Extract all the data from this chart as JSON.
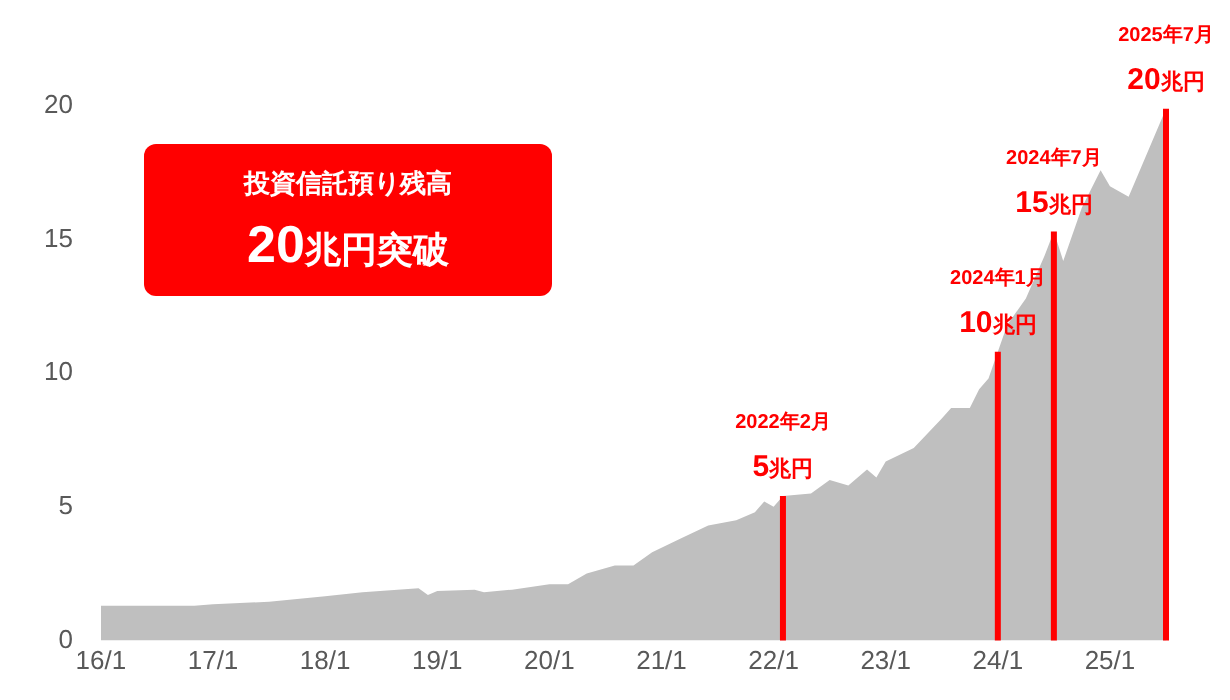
{
  "chart_data": {
    "type": "area",
    "x": [
      "2016-01",
      "2016-11",
      "2017-01",
      "2017-07",
      "2018-01",
      "2018-05",
      "2018-11",
      "2018-12",
      "2019-01",
      "2019-05",
      "2019-06",
      "2019-09",
      "2020-01",
      "2020-03",
      "2020-05",
      "2020-08",
      "2020-10",
      "2020-12",
      "2021-03",
      "2021-06",
      "2021-09",
      "2021-11",
      "2021-12",
      "2022-01",
      "2022-02",
      "2022-05",
      "2022-07",
      "2022-09",
      "2022-11",
      "2022-12",
      "2023-01",
      "2023-04",
      "2023-07",
      "2023-08",
      "2023-10",
      "2023-11",
      "2023-12",
      "2024-01",
      "2024-02",
      "2024-04",
      "2024-06",
      "2024-07",
      "2024-08",
      "2024-10",
      "2024-12",
      "2025-01",
      "2025-03",
      "2025-07"
    ],
    "series": [
      {
        "color": "#bfbfbf",
        "values": [
          1.3,
          1.3,
          1.35,
          1.45,
          1.65,
          1.8,
          1.95,
          1.7,
          1.85,
          1.9,
          1.8,
          1.9,
          2.1,
          2.1,
          2.5,
          2.8,
          2.8,
          3.3,
          3.8,
          4.3,
          4.5,
          4.8,
          5.2,
          5.0,
          5.4,
          5.5,
          6.0,
          5.8,
          6.4,
          6.1,
          6.7,
          7.2,
          8.3,
          8.7,
          8.7,
          9.4,
          9.8,
          10.8,
          11.8,
          12.8,
          14.4,
          15.3,
          14.2,
          16.2,
          17.6,
          17.0,
          16.6,
          19.9
        ]
      }
    ],
    "xlim": [
      "2016-01",
      "2025-07"
    ],
    "xticks": [
      {
        "value": "2016-01",
        "label": "16/1"
      },
      {
        "value": "2017-01",
        "label": "17/1"
      },
      {
        "value": "2018-01",
        "label": "18/1"
      },
      {
        "value": "2019-01",
        "label": "19/1"
      },
      {
        "value": "2020-01",
        "label": "20/1"
      },
      {
        "value": "2021-01",
        "label": "21/1"
      },
      {
        "value": "2022-01",
        "label": "22/1"
      },
      {
        "value": "2023-01",
        "label": "23/1"
      },
      {
        "value": "2024-01",
        "label": "24/1"
      },
      {
        "value": "2025-01",
        "label": "25/1"
      }
    ],
    "ylim": [
      0,
      20
    ],
    "yticks": [
      0,
      5,
      10,
      15,
      20
    ],
    "grid": false,
    "legend": false,
    "marker": "none",
    "annotations": [
      "投資信託預り残高",
      "20兆円突破",
      "2022年2月",
      "2024年1月",
      "2024年7月",
      "2025年7月",
      {
        "text": "5兆円",
        "x": "2022-02",
        "y": 5.4
      },
      {
        "text": "10兆円",
        "x": "2024-01",
        "y": 10.8
      },
      {
        "text": "15兆円",
        "x": "2024-07",
        "y": 15.3
      },
      {
        "text": "20兆円",
        "x": "2025-07",
        "y": 19.9
      }
    ]
  }
}
